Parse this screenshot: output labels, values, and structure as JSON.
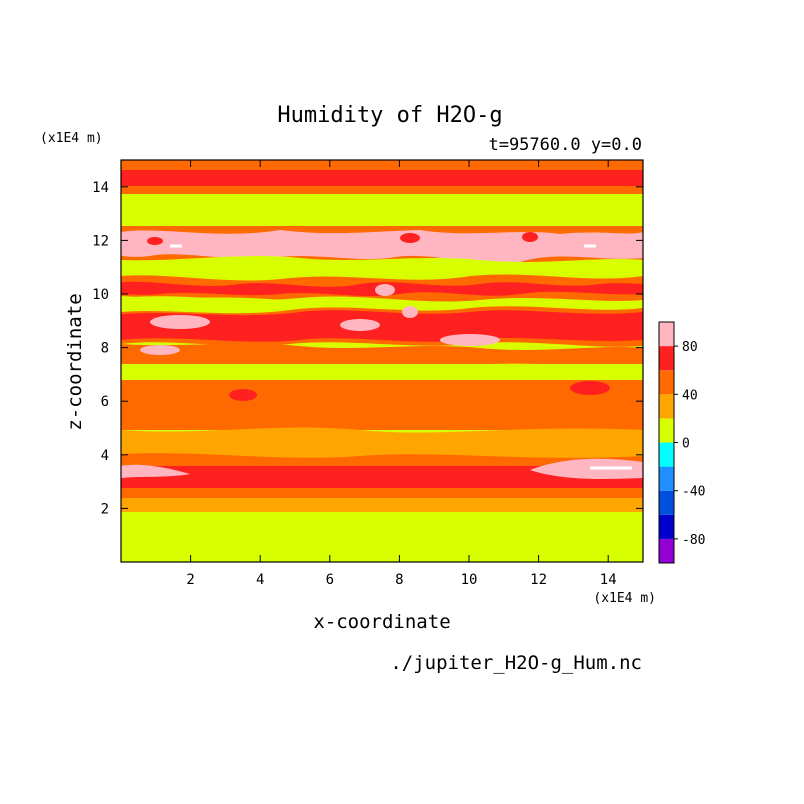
{
  "chart_data": {
    "type": "heatmap",
    "title": "Humidity of H2O-g",
    "subtitle": "t=95760.0 y=0.0",
    "xlabel": "x-coordinate",
    "ylabel": "z-coordinate",
    "x_unit": "(x1E4 m)",
    "y_unit": "(x1E4 m)",
    "source_file": "./jupiter_H2O-g_Hum.nc",
    "xlim": [
      0,
      15
    ],
    "ylim": [
      0,
      15
    ],
    "x_ticks": [
      2,
      4,
      6,
      8,
      10,
      12,
      14
    ],
    "y_ticks": [
      2,
      4,
      6,
      8,
      10,
      12,
      14
    ],
    "colorbar": {
      "levels": [
        -100,
        -80,
        -60,
        -40,
        -20,
        0,
        20,
        40,
        60,
        80,
        100
      ],
      "tick_labels": [
        "80",
        "40",
        "0",
        "-40",
        "-80"
      ],
      "tick_values": [
        80,
        40,
        0,
        -40,
        -80
      ],
      "colors": [
        "#9400d3",
        "#0000cd",
        "#0050e0",
        "#1e90ff",
        "#00ffff",
        "#d7ff00",
        "#ffa500",
        "#ff6a00",
        "#ff2020",
        "#ffb6c1"
      ]
    },
    "layers": [
      {
        "z_range": [
          0,
          1.9
        ],
        "value_range": [
          0,
          20
        ]
      },
      {
        "z_range": [
          1.9,
          2.4
        ],
        "value_range": [
          20,
          40
        ]
      },
      {
        "z_range": [
          2.4,
          2.8
        ],
        "value_range": [
          40,
          60
        ]
      },
      {
        "z_range": [
          2.8,
          3.7
        ],
        "value_range": [
          60,
          100
        ]
      },
      {
        "z_range": [
          3.7,
          7.2
        ],
        "value_range": [
          20,
          60
        ]
      },
      {
        "z_range": [
          7.2,
          12.5
        ],
        "value_range": [
          0,
          100
        ]
      },
      {
        "z_range": [
          12.5,
          13.8
        ],
        "value_range": [
          0,
          20
        ]
      },
      {
        "z_range": [
          13.8,
          14.3
        ],
        "value_range": [
          40,
          60
        ]
      },
      {
        "z_range": [
          14.3,
          15
        ],
        "value_range": [
          60,
          80
        ]
      }
    ]
  }
}
